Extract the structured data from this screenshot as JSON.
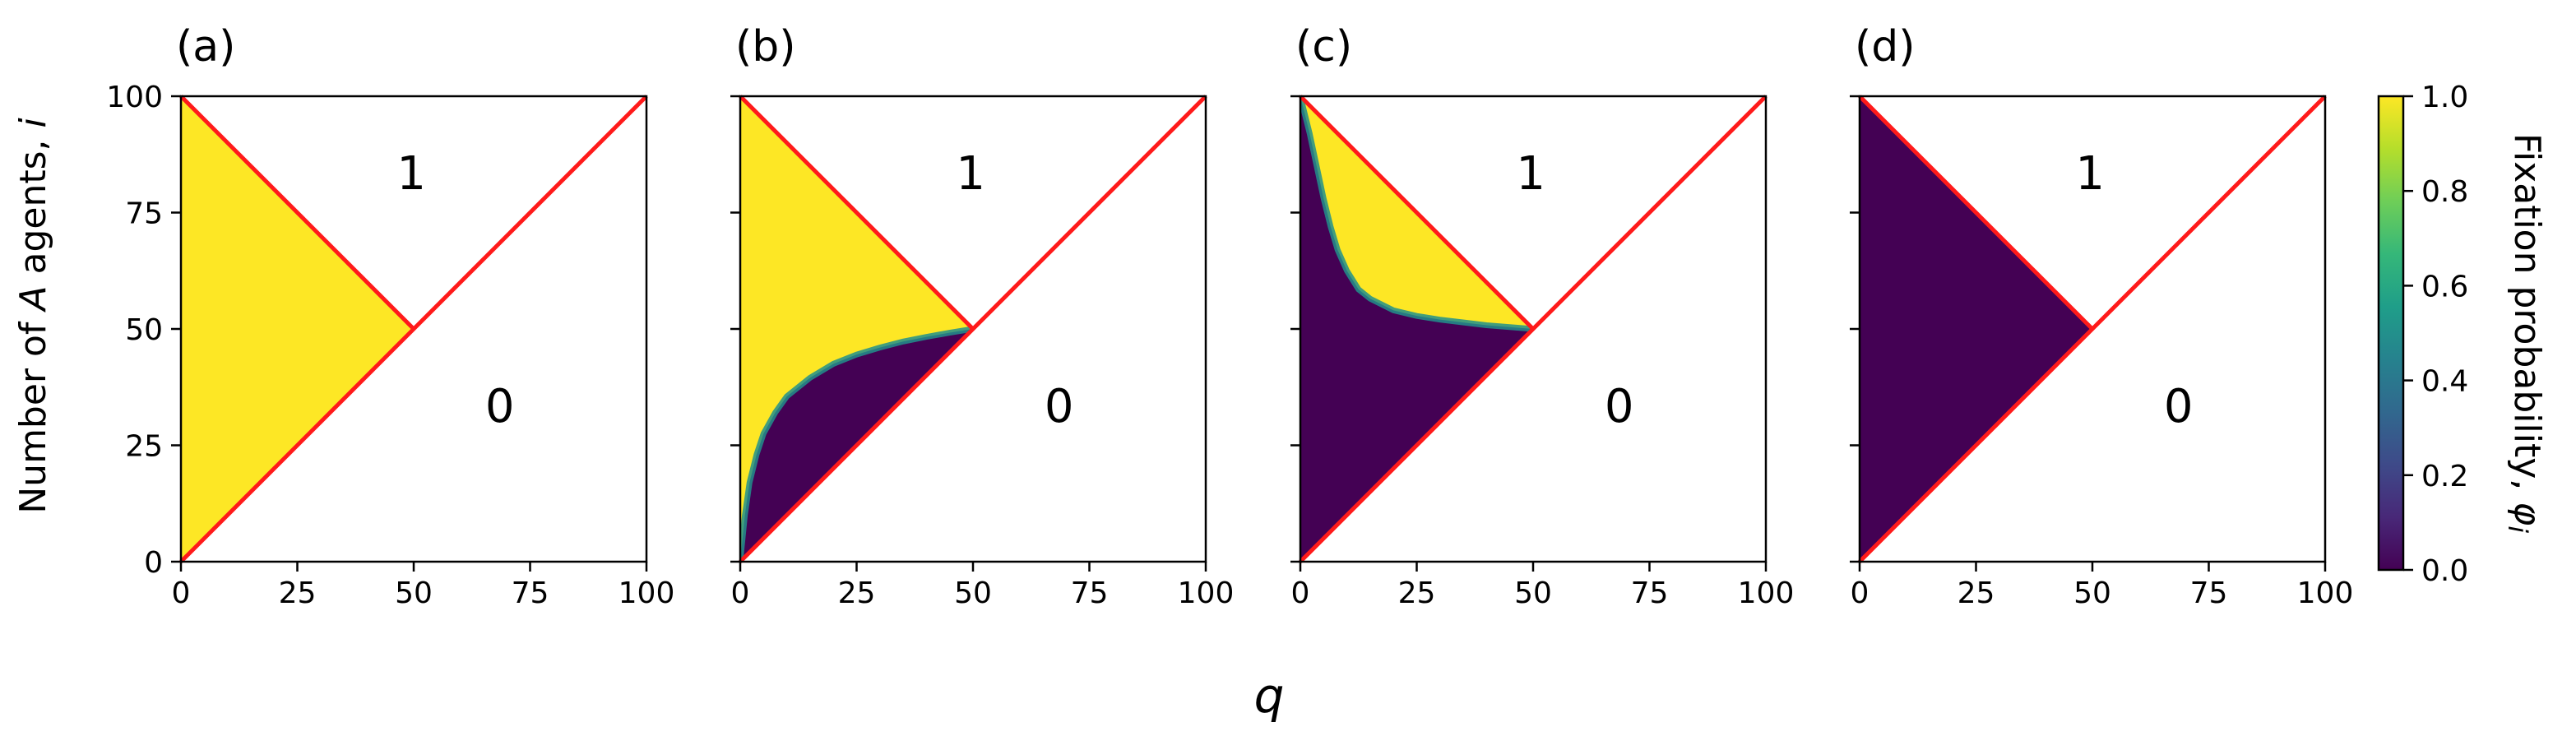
{
  "chart_data": {
    "type": "heatmap",
    "shared": {
      "xlabel": "q",
      "ylabel_prefix": "Number of ",
      "ylabel_var": "A",
      "ylabel_mid": " agents, ",
      "ylabel_var2": "i",
      "xlim": [
        0,
        100
      ],
      "ylim": [
        0,
        100
      ],
      "xticks": [
        0,
        25,
        50,
        75,
        100
      ],
      "yticks": [
        0,
        25,
        50,
        75,
        100
      ],
      "region_label_upper": "1",
      "region_label_lower": "0",
      "boundary_color": "#ff1a1a",
      "grid": false
    },
    "panels": [
      {
        "label": "(a)",
        "shape": "all_one"
      },
      {
        "label": "(b)",
        "shape": "curve",
        "threshold": [
          [
            0,
            0
          ],
          [
            1,
            10
          ],
          [
            2,
            17
          ],
          [
            3.5,
            23
          ],
          [
            5,
            27.5
          ],
          [
            7.5,
            32
          ],
          [
            10,
            35.5
          ],
          [
            15,
            39.5
          ],
          [
            20,
            42.5
          ],
          [
            25,
            44.5
          ],
          [
            30,
            46
          ],
          [
            35,
            47.3
          ],
          [
            40,
            48.3
          ],
          [
            45,
            49.2
          ],
          [
            50,
            50
          ]
        ]
      },
      {
        "label": "(c)",
        "shape": "curve",
        "threshold": [
          [
            0,
            100
          ],
          [
            2,
            92
          ],
          [
            3.5,
            85
          ],
          [
            5,
            78
          ],
          [
            6.5,
            72
          ],
          [
            8,
            67
          ],
          [
            10,
            62.5
          ],
          [
            12.5,
            58.5
          ],
          [
            15,
            56.5
          ],
          [
            20,
            54
          ],
          [
            25,
            52.8
          ],
          [
            30,
            52
          ],
          [
            40,
            50.8
          ],
          [
            50,
            50
          ]
        ]
      },
      {
        "label": "(d)",
        "shape": "all_zero"
      }
    ],
    "colorbar": {
      "label": "Fixation probability, ",
      "label_symbol": "φ",
      "label_sub": "i",
      "range": [
        0,
        1
      ],
      "ticks": [
        "0.0",
        "0.2",
        "0.4",
        "0.6",
        "0.8",
        "1.0"
      ],
      "colormap": "viridis",
      "stops": [
        "#440154",
        "#482878",
        "#3e4a89",
        "#31688e",
        "#26828e",
        "#1f9e89",
        "#35b779",
        "#6ece58",
        "#b5de2b",
        "#fde725"
      ]
    },
    "colors": {
      "one": "#fde725",
      "zero": "#440154"
    }
  }
}
